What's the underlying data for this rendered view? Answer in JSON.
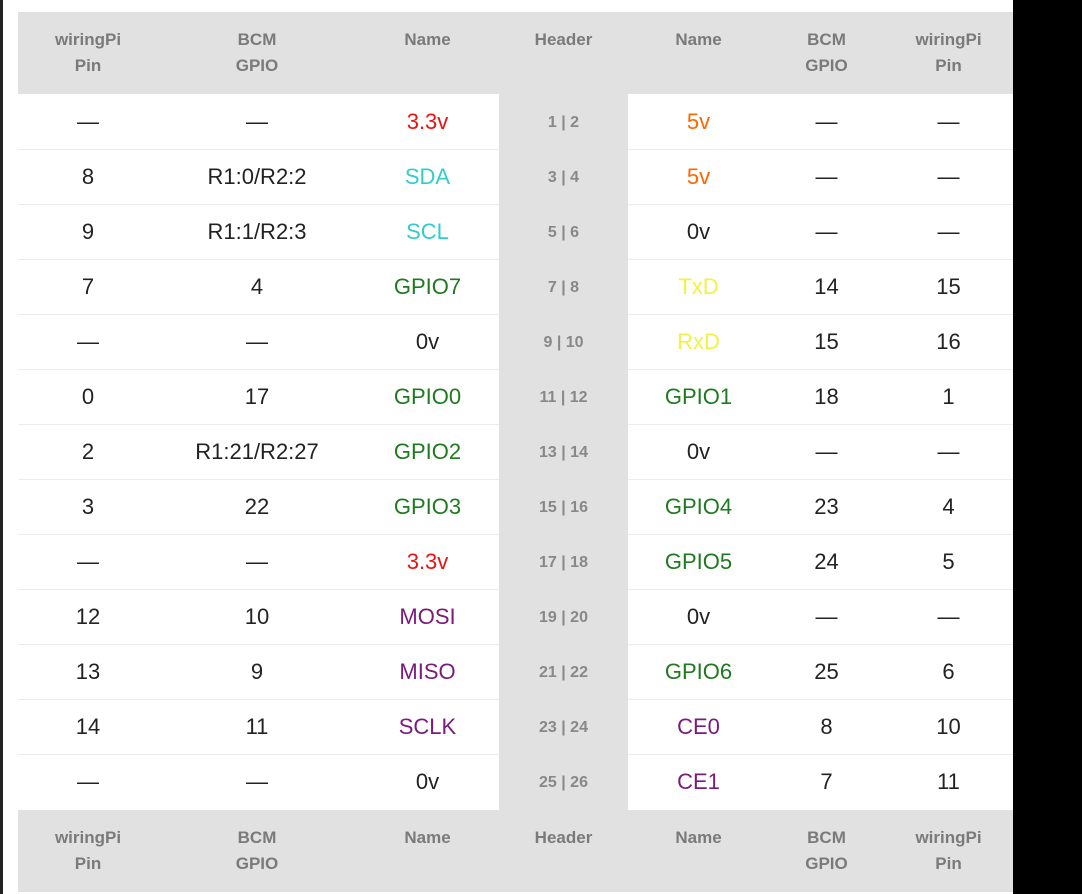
{
  "headers": [
    [
      "wiringPi",
      "Pin"
    ],
    [
      "BCM",
      "GPIO"
    ],
    [
      "Name",
      ""
    ],
    [
      "Header",
      ""
    ],
    [
      "Name",
      ""
    ],
    [
      "BCM",
      "GPIO"
    ],
    [
      "wiringPi",
      "Pin"
    ]
  ],
  "colors": {
    "red": "#ee1111",
    "orange": "#ff6600",
    "teal": "#33cccc",
    "green": "#1f7a1f",
    "yellow": "#f2f244",
    "purple": "#7a1a7a",
    "black": "#222222"
  },
  "rows": [
    {
      "wp_l": "—",
      "bcm_l": "—",
      "name_l": "3.3v",
      "name_l_color": "red",
      "header": "1 | 2",
      "name_r": "5v",
      "name_r_color": "orange",
      "bcm_r": "—",
      "wp_r": "—"
    },
    {
      "wp_l": "8",
      "bcm_l": "R1:0/R2:2",
      "name_l": "SDA",
      "name_l_color": "teal",
      "header": "3 | 4",
      "name_r": "5v",
      "name_r_color": "orange",
      "bcm_r": "—",
      "wp_r": "—"
    },
    {
      "wp_l": "9",
      "bcm_l": "R1:1/R2:3",
      "name_l": "SCL",
      "name_l_color": "teal",
      "header": "5 | 6",
      "name_r": "0v",
      "name_r_color": "black",
      "bcm_r": "—",
      "wp_r": "—"
    },
    {
      "wp_l": "7",
      "bcm_l": "4",
      "name_l": "GPIO7",
      "name_l_color": "green",
      "header": "7 | 8",
      "name_r": "TxD",
      "name_r_color": "yellow",
      "bcm_r": "14",
      "wp_r": "15"
    },
    {
      "wp_l": "—",
      "bcm_l": "—",
      "name_l": "0v",
      "name_l_color": "black",
      "header": "9 | 10",
      "name_r": "RxD",
      "name_r_color": "yellow",
      "bcm_r": "15",
      "wp_r": "16"
    },
    {
      "wp_l": "0",
      "bcm_l": "17",
      "name_l": "GPIO0",
      "name_l_color": "green",
      "header": "11 | 12",
      "name_r": "GPIO1",
      "name_r_color": "green",
      "bcm_r": "18",
      "wp_r": "1"
    },
    {
      "wp_l": "2",
      "bcm_l": "R1:21/R2:27",
      "name_l": "GPIO2",
      "name_l_color": "green",
      "header": "13 | 14",
      "name_r": "0v",
      "name_r_color": "black",
      "bcm_r": "—",
      "wp_r": "—"
    },
    {
      "wp_l": "3",
      "bcm_l": "22",
      "name_l": "GPIO3",
      "name_l_color": "green",
      "header": "15 | 16",
      "name_r": "GPIO4",
      "name_r_color": "green",
      "bcm_r": "23",
      "wp_r": "4"
    },
    {
      "wp_l": "—",
      "bcm_l": "—",
      "name_l": "3.3v",
      "name_l_color": "red",
      "header": "17 | 18",
      "name_r": "GPIO5",
      "name_r_color": "green",
      "bcm_r": "24",
      "wp_r": "5"
    },
    {
      "wp_l": "12",
      "bcm_l": "10",
      "name_l": "MOSI",
      "name_l_color": "purple",
      "header": "19 | 20",
      "name_r": "0v",
      "name_r_color": "black",
      "bcm_r": "—",
      "wp_r": "—"
    },
    {
      "wp_l": "13",
      "bcm_l": "9",
      "name_l": "MISO",
      "name_l_color": "purple",
      "header": "21 | 22",
      "name_r": "GPIO6",
      "name_r_color": "green",
      "bcm_r": "25",
      "wp_r": "6"
    },
    {
      "wp_l": "14",
      "bcm_l": "11",
      "name_l": "SCLK",
      "name_l_color": "purple",
      "header": "23 | 24",
      "name_r": "CE0",
      "name_r_color": "purple",
      "bcm_r": "8",
      "wp_r": "10"
    },
    {
      "wp_l": "—",
      "bcm_l": "—",
      "name_l": "0v",
      "name_l_color": "black",
      "header": "25 | 26",
      "name_r": "CE1",
      "name_r_color": "purple",
      "bcm_r": "7",
      "wp_r": "11"
    }
  ]
}
